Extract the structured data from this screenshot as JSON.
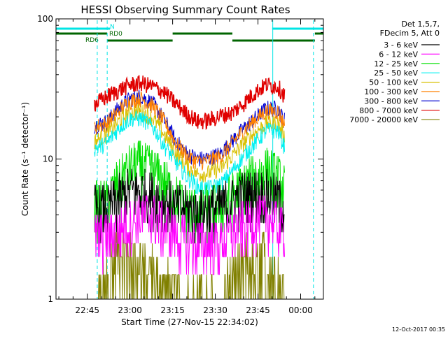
{
  "chart_data": {
    "type": "line",
    "title": "HESSI Observing Summary Count Rates",
    "xlabel": "Start Time (27-Nov-15 22:34:02)",
    "ylabel": "Count Rate (s⁻¹ detector⁻¹)",
    "yscale": "log",
    "ylim": [
      1,
      100
    ],
    "yticks": [
      "1",
      "10",
      "100"
    ],
    "xlim_minutes": [
      0,
      94
    ],
    "xticks": [
      "22:45",
      "23:00",
      "23:15",
      "23:30",
      "23:45",
      "00:00"
    ],
    "xtick_minutes": [
      11,
      26,
      41,
      56,
      71,
      86
    ],
    "legend_header": [
      "Det 1,5,7,",
      "FDecim 5, Att 0"
    ],
    "legend_position": "right",
    "footer": "12-Oct-2017 00:35",
    "flag_labels": [
      "N",
      "RD0",
      "RD6"
    ],
    "flags": [
      {
        "label": "N",
        "color": "#00e5e5",
        "segments": [
          [
            0,
            19
          ],
          [
            76,
            94
          ]
        ]
      },
      {
        "label": "RD0",
        "color": "#006400",
        "segments": [
          [
            0,
            18
          ],
          [
            41,
            62
          ],
          [
            91,
            94
          ]
        ]
      },
      {
        "label": "RD6",
        "color": "#006400",
        "segments": [
          [
            18,
            41
          ],
          [
            62,
            91
          ]
        ]
      }
    ],
    "vlines": [
      {
        "minute": 14.5,
        "style": "dashed",
        "color": "#00e5e5"
      },
      {
        "minute": 18.0,
        "style": "dashed",
        "color": "#00e5e5"
      },
      {
        "minute": 76.2,
        "style": "solid",
        "color": "#00e5e5"
      },
      {
        "minute": 90.5,
        "style": "dashed",
        "color": "#00e5e5"
      }
    ],
    "data_range_minutes": [
      13.5,
      80.5
    ],
    "series": [
      {
        "name": "3 - 6 keV",
        "color": "#000000",
        "x": [
          14,
          18,
          22,
          26,
          30,
          34,
          38,
          42,
          46,
          50,
          54,
          58,
          62,
          66,
          70,
          74,
          78,
          80
        ],
        "values": [
          4.5,
          4.5,
          5.3,
          6.0,
          6.0,
          5.6,
          5.0,
          4.6,
          4.3,
          4.2,
          4.4,
          4.7,
          5.2,
          5.6,
          5.8,
          5.8,
          5.3,
          4.8
        ]
      },
      {
        "name": "6 - 12 keV",
        "color": "#ff00ff",
        "x": [
          14,
          18,
          22,
          26,
          30,
          34,
          38,
          42,
          46,
          50,
          54,
          58,
          62,
          66,
          70,
          74,
          78,
          80
        ],
        "values": [
          2.8,
          2.8,
          3.2,
          3.6,
          4.0,
          4.0,
          3.4,
          2.9,
          2.6,
          2.5,
          2.6,
          2.6,
          3.0,
          3.4,
          3.8,
          4.0,
          3.4,
          3.2
        ]
      },
      {
        "name": "12 - 25 keV",
        "color": "#00e000",
        "x": [
          14,
          18,
          22,
          26,
          30,
          34,
          38,
          42,
          46,
          50,
          54,
          58,
          62,
          66,
          70,
          74,
          78,
          80
        ],
        "values": [
          4.8,
          5.0,
          7.0,
          8.8,
          9.5,
          8.5,
          7.0,
          5.4,
          4.6,
          4.3,
          4.4,
          4.8,
          5.6,
          6.6,
          7.6,
          8.6,
          7.6,
          6.5
        ]
      },
      {
        "name": "25 - 50 keV",
        "color": "#00f0f0",
        "x": [
          14,
          18,
          22,
          26,
          30,
          34,
          38,
          42,
          46,
          50,
          54,
          58,
          62,
          66,
          70,
          74,
          78,
          80
        ],
        "values": [
          12.0,
          13.0,
          16.5,
          19.5,
          19.5,
          17.0,
          12.5,
          9.5,
          7.5,
          6.3,
          6.2,
          6.6,
          8.2,
          10.5,
          13.0,
          16.0,
          16.0,
          12.5
        ]
      },
      {
        "name": "50 - 100 keV",
        "color": "#d8c000",
        "x": [
          14,
          18,
          22,
          26,
          30,
          34,
          38,
          42,
          46,
          50,
          54,
          58,
          62,
          66,
          70,
          74,
          78,
          80
        ],
        "values": [
          13.5,
          15.0,
          18.5,
          21.5,
          22.0,
          19.5,
          15.0,
          11.0,
          8.8,
          7.8,
          8.0,
          8.6,
          10.5,
          13.0,
          15.5,
          18.0,
          18.0,
          14.5
        ]
      },
      {
        "name": "100 - 300 keV",
        "color": "#ff8000",
        "x": [
          14,
          18,
          22,
          26,
          30,
          34,
          38,
          42,
          46,
          50,
          54,
          58,
          62,
          66,
          70,
          74,
          78,
          80
        ],
        "values": [
          17.0,
          18.0,
          22.0,
          26.0,
          27.0,
          24.0,
          18.5,
          13.0,
          10.5,
          9.5,
          9.8,
          10.5,
          13.0,
          16.0,
          19.0,
          22.0,
          22.0,
          18.0
        ]
      },
      {
        "name": "300 - 800 keV",
        "color": "#0000d0",
        "x": [
          14,
          18,
          22,
          26,
          30,
          34,
          38,
          42,
          46,
          50,
          54,
          58,
          62,
          66,
          70,
          74,
          78,
          80
        ],
        "values": [
          17.5,
          18.5,
          23.0,
          27.0,
          28.0,
          25.0,
          19.0,
          13.5,
          11.0,
          10.0,
          10.2,
          11.0,
          13.5,
          16.5,
          19.5,
          23.0,
          23.0,
          19.0
        ]
      },
      {
        "name": "800 - 7000 keV",
        "color": "#e00000",
        "x": [
          14,
          18,
          22,
          26,
          30,
          34,
          38,
          42,
          46,
          50,
          54,
          58,
          62,
          66,
          70,
          74,
          78,
          80
        ],
        "values": [
          25.0,
          28.0,
          31.0,
          34.0,
          35.0,
          33.0,
          30.0,
          25.0,
          21.0,
          18.5,
          19.0,
          20.5,
          21.5,
          25.0,
          30.0,
          34.0,
          33.0,
          29.0
        ]
      },
      {
        "name": "7000 - 20000 keV",
        "color": "#808000",
        "x": [
          14,
          18,
          22,
          26,
          30,
          34,
          38,
          42,
          46,
          50,
          54,
          58,
          62,
          66,
          70,
          74,
          78,
          80
        ],
        "values": [
          1.0,
          1.6,
          2.4,
          2.2,
          2.0,
          1.7,
          1.3,
          1.2,
          1.0,
          1.1,
          1.0,
          1.0,
          1.6,
          1.9,
          2.0,
          2.2,
          1.8,
          1.4
        ]
      }
    ]
  }
}
